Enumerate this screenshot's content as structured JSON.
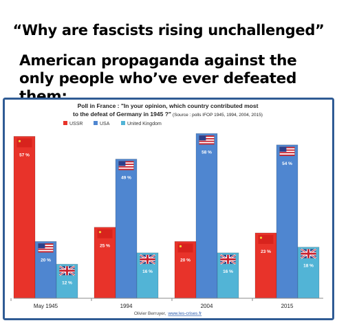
{
  "headline": {
    "line1": "“Why are fascists rising unchallenged”",
    "line2": "American propaganda against the only people who’ve ever defeated them:"
  },
  "chart_data": {
    "type": "bar",
    "title_line1": "Poll in France : \"In your opinion, which country contributed most",
    "title_line2": "to the defeat of Germany in 1945 ?\"",
    "source": "(Source : polls IFOP 1945, 1994, 2004, 2015)",
    "categories": [
      "May 1945",
      "1994",
      "2004",
      "2015"
    ],
    "series": [
      {
        "name": "USSR",
        "values": [
          57,
          25,
          20,
          23
        ],
        "labels": [
          "57 %",
          "25 %",
          "20 %",
          "23 %"
        ],
        "color": "#e8332a"
      },
      {
        "name": "USA",
        "values": [
          20,
          49,
          58,
          54
        ],
        "labels": [
          "20 %",
          "49 %",
          "58 %",
          "54 %"
        ],
        "color": "#4f86d0"
      },
      {
        "name": "United Kingdom",
        "values": [
          12,
          16,
          16,
          18
        ],
        "labels": [
          "12 %",
          "16 %",
          "16 %",
          "18 %"
        ],
        "color": "#52b4d6"
      }
    ],
    "ylim": [
      0,
      60
    ],
    "legend_position": "top-left",
    "footer": "Olivier Berruyer,",
    "footer_link": "www.les-crises.fr",
    "grid": false
  },
  "colors": {
    "frame": "#2f5b94",
    "ussr": "#e8332a",
    "usa": "#4f86d0",
    "uk": "#52b4d6"
  }
}
